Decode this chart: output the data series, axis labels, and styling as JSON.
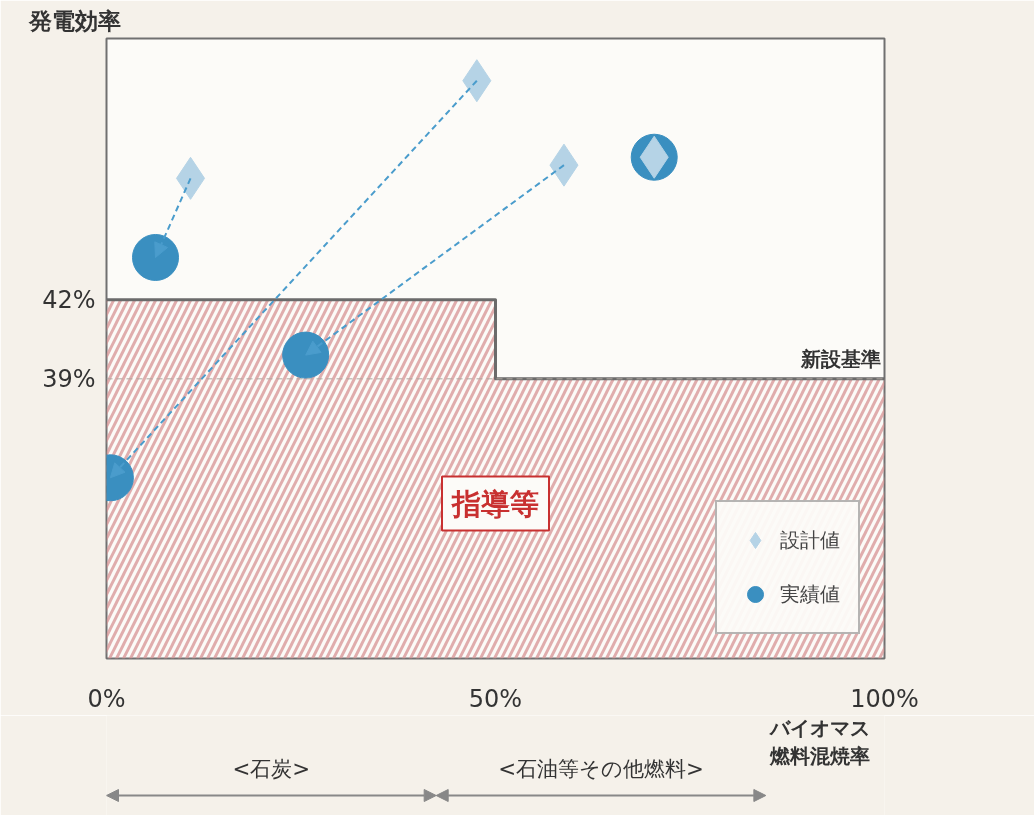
{
  "chart_data": {
    "type": "scatter",
    "ylabel": "発電効率",
    "xlabel": "バイオマス燃料混焼率",
    "xlim": [
      0,
      100
    ],
    "ylim": [
      28.4,
      51.9
    ],
    "xticks": [
      {
        "value": 0,
        "label": "0%"
      },
      {
        "value": 50,
        "label": "50%"
      },
      {
        "value": 100,
        "label": "100%"
      }
    ],
    "yticks": [
      {
        "value": 42,
        "label": "42%"
      },
      {
        "value": 39,
        "label": "39%"
      }
    ],
    "grid": false,
    "legend": "bottom right",
    "series": [
      {
        "name": "新設基準",
        "type": "step",
        "color": "#6b6b6b",
        "x": [
          0,
          50,
          100
        ],
        "values": [
          42,
          39,
          39
        ]
      },
      {
        "name": "設計値",
        "marker": "diamond",
        "color": "#b5d3e6",
        "x": [
          10.8,
          47.6,
          58.8,
          70.4
        ],
        "values": [
          46.6,
          50.3,
          47.1,
          47.4
        ]
      },
      {
        "name": "実績値",
        "marker": "circle",
        "color": "#3a8fc0",
        "x": [
          6.3,
          0.5,
          25.6,
          70.4
        ],
        "values": [
          43.6,
          35.25,
          39.9,
          47.4
        ]
      }
    ],
    "ref_lines": [
      {
        "axis": "y",
        "value": 39,
        "line_style": "dashed",
        "color": "#b0a8a0"
      }
    ],
    "annotations": [
      "指導等",
      {
        "text": "<石炭>"
      },
      {
        "text": "<石油等その他燃料>"
      }
    ]
  }
}
